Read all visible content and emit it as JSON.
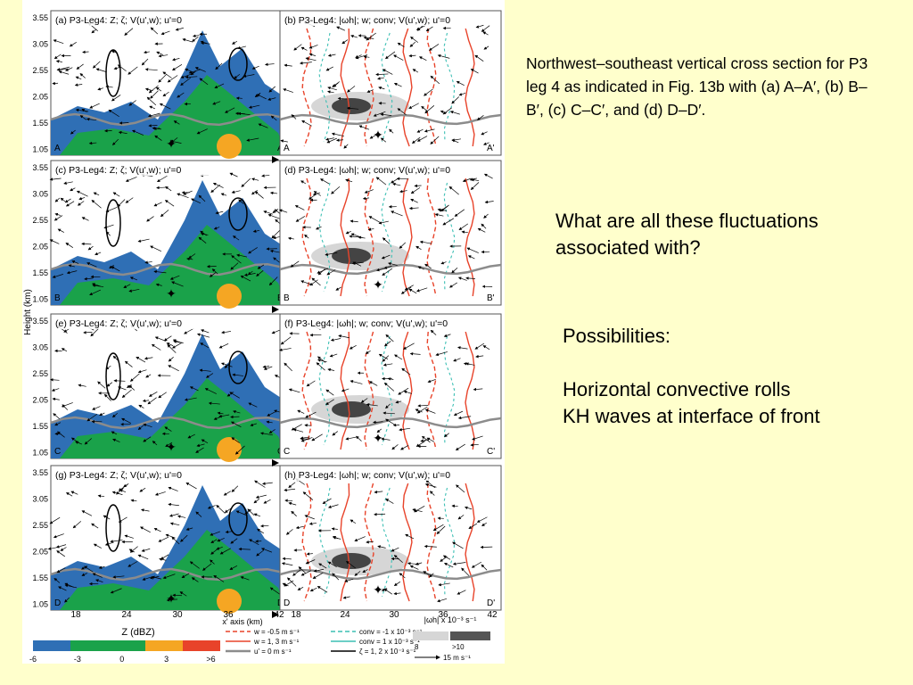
{
  "caption": "Northwest–southeast vertical cross section for P3 leg 4 as indicated in Fig. 13b with (a) A–A′, (b) B–B′, (c) C–C′, and (d) D–D′.",
  "question": "What are all these fluctuations associated with?",
  "possibilities": {
    "title": "Possibilities:",
    "items": [
      "Horizontal convective rolls",
      "KH waves at interface of front"
    ]
  },
  "figure": {
    "y_axis_label": "Height (km)",
    "y_ticks": [
      "3.55",
      "3.05",
      "2.55",
      "2.05",
      "1.55",
      "1.05"
    ],
    "x_ticks": [
      "18",
      "24",
      "30",
      "36",
      "42"
    ],
    "x_axis_label": "x' axis (km)",
    "panels_left": [
      {
        "title": "(a) P3-Leg4: Z; ζ; V(u',w); u'=0",
        "start": "A",
        "end": "A'"
      },
      {
        "title": "(c) P3-Leg4: Z; ζ; V(u',w); u'=0",
        "start": "B",
        "end": "B'"
      },
      {
        "title": "(e) P3-Leg4: Z; ζ; V(u',w); u'=0",
        "start": "C",
        "end": "C'"
      },
      {
        "title": "(g) P3-Leg4: Z; ζ; V(u',w); u'=0",
        "start": "D",
        "end": "D'"
      }
    ],
    "panels_right": [
      {
        "title": "(b) P3-Leg4: |ωh|; w; conv; V(u',w); u'=0",
        "start": "A",
        "end": "A'"
      },
      {
        "title": "(d) P3-Leg4: |ωh|; w; conv; V(u',w); u'=0",
        "start": "B",
        "end": "B'"
      },
      {
        "title": "(f) P3-Leg4: |ωh|; w; conv; V(u',w); u'=0",
        "start": "C",
        "end": "C'"
      },
      {
        "title": "(h) P3-Leg4: |ωh|; w; conv; V(u',w); u'=0",
        "start": "D",
        "end": "D'"
      }
    ],
    "colorbar": {
      "label": "Z (dBZ)",
      "ticks": [
        "-6",
        "-3",
        "0",
        "3",
        ">6"
      ],
      "colors": [
        "#2f6fb5",
        "#1aa24a",
        "#1aa24a",
        "#f5a623",
        "#e8432a"
      ]
    },
    "legend": {
      "w_neg": "w = -0.5 m s⁻¹",
      "w_pos": "w = 1, 3 m s⁻¹",
      "u_zero": "u' = 0 m s⁻¹",
      "conv_neg": "conv = -1 x 10⁻³ s⁻¹",
      "conv_pos": "conv = 1 x 10⁻³ s⁻¹",
      "zeta": "ζ = 1, 2 x 10⁻³ s⁻¹",
      "omega_label": "|ωh| x 10⁻³ s⁻¹",
      "omega_8": "8",
      "omega_10": ">10",
      "vector_scale": "15 m s⁻¹"
    },
    "colors": {
      "blue": "#2f6fb5",
      "green": "#1aa24a",
      "orange": "#f5a623",
      "red": "#e8432a",
      "w_neg": "#e8432a",
      "conv": "#3cbfb4",
      "gray": "#8c8c8c"
    }
  }
}
